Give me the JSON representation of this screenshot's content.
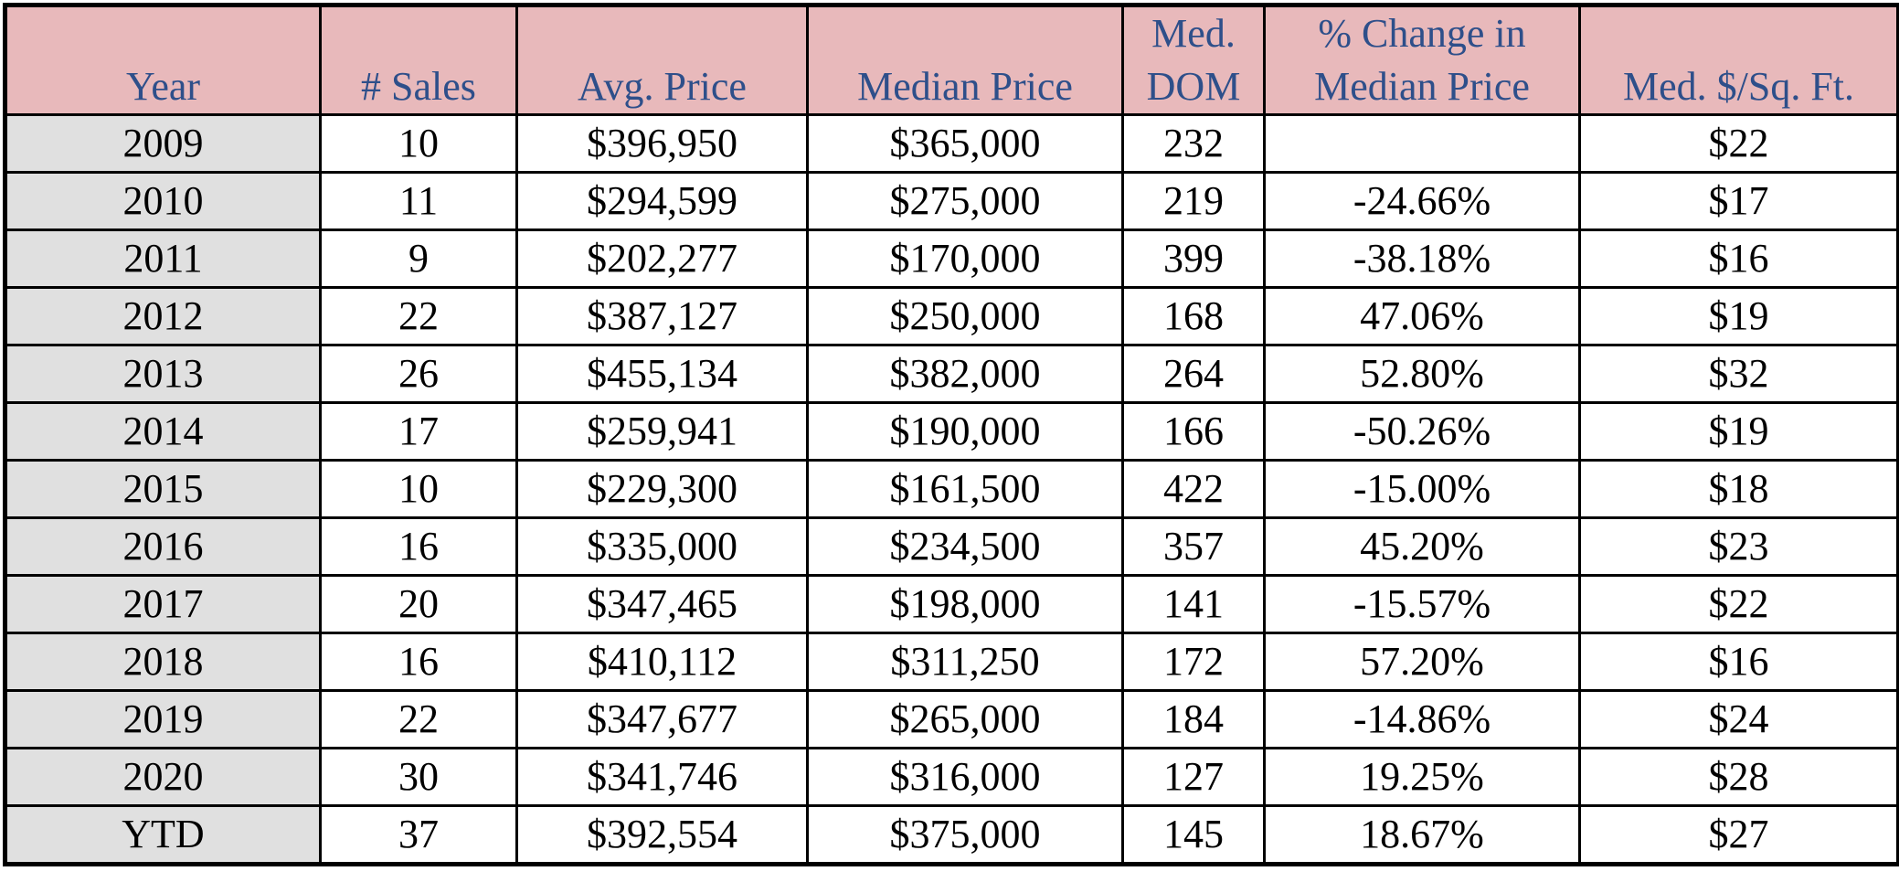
{
  "chart_data": {
    "type": "table",
    "columns": [
      {
        "top": "",
        "bottom": "Year"
      },
      {
        "top": "",
        "bottom": "# Sales"
      },
      {
        "top": "",
        "bottom": "Avg. Price"
      },
      {
        "top": "",
        "bottom": "Median Price"
      },
      {
        "top": "Med.",
        "bottom": "DOM"
      },
      {
        "top": "% Change in",
        "bottom": "Median Price"
      },
      {
        "top": "",
        "bottom": "Med. $/Sq. Ft."
      }
    ],
    "rows": [
      [
        "2009",
        "10",
        "$396,950",
        "$365,000",
        "232",
        "",
        "$22"
      ],
      [
        "2010",
        "11",
        "$294,599",
        "$275,000",
        "219",
        "-24.66%",
        "$17"
      ],
      [
        "2011",
        "9",
        "$202,277",
        "$170,000",
        "399",
        "-38.18%",
        "$16"
      ],
      [
        "2012",
        "22",
        "$387,127",
        "$250,000",
        "168",
        "47.06%",
        "$19"
      ],
      [
        "2013",
        "26",
        "$455,134",
        "$382,000",
        "264",
        "52.80%",
        "$32"
      ],
      [
        "2014",
        "17",
        "$259,941",
        "$190,000",
        "166",
        "-50.26%",
        "$19"
      ],
      [
        "2015",
        "10",
        "$229,300",
        "$161,500",
        "422",
        "-15.00%",
        "$18"
      ],
      [
        "2016",
        "16",
        "$335,000",
        "$234,500",
        "357",
        "45.20%",
        "$23"
      ],
      [
        "2017",
        "20",
        "$347,465",
        "$198,000",
        "141",
        "-15.57%",
        "$22"
      ],
      [
        "2018",
        "16",
        "$410,112",
        "$311,250",
        "172",
        "57.20%",
        "$16"
      ],
      [
        "2019",
        "22",
        "$347,677",
        "$265,000",
        "184",
        "-14.86%",
        "$24"
      ],
      [
        "2020",
        "30",
        "$341,746",
        "$316,000",
        "127",
        "19.25%",
        "$28"
      ],
      [
        "YTD",
        "37",
        "$392,554",
        "$375,000",
        "145",
        "18.67%",
        "$27"
      ]
    ]
  },
  "colors": {
    "header_bg": "#e8b9bb",
    "header_text": "#2e4f8a",
    "year_col_bg": "#e0e0e0",
    "border": "#000000"
  }
}
